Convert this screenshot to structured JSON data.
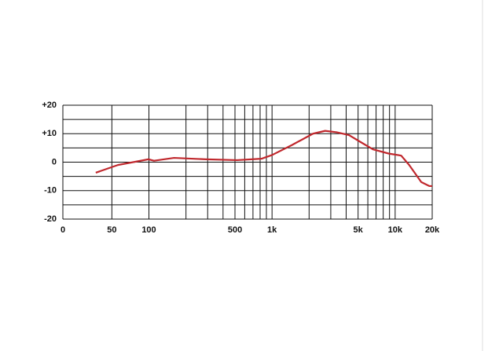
{
  "chart_data": {
    "type": "line",
    "xscale": "log",
    "x": [
      37,
      56,
      99,
      110,
      160,
      290,
      520,
      820,
      1000,
      1450,
      2150,
      2700,
      3350,
      4220,
      5270,
      6600,
      8900,
      11200,
      13000,
      16300,
      19000,
      20000
    ],
    "series": [
      {
        "color": "#c0282d",
        "values": [
          -3.7,
          -1,
          1,
          0.5,
          1.5,
          1,
          0.7,
          1.2,
          2.5,
          6,
          10,
          11,
          10.5,
          9.5,
          7,
          4.5,
          3,
          2.3,
          -1,
          -7,
          -8.4,
          -8.4
        ]
      }
    ],
    "xlim": [
      20,
      20000
    ],
    "xticks": [
      {
        "value": 20,
        "label": "0"
      },
      50,
      100,
      500,
      {
        "value": 1000,
        "label": "1k"
      },
      {
        "value": 5000,
        "label": "5k"
      },
      {
        "value": 10000,
        "label": "10k"
      },
      {
        "value": 20000,
        "label": "20k"
      }
    ],
    "xgrid": [
      20,
      50,
      100,
      200,
      300,
      400,
      500,
      600,
      700,
      800,
      900,
      1000,
      2000,
      3000,
      4000,
      5000,
      6000,
      7000,
      8000,
      9000,
      10000,
      20000
    ],
    "ylim": [
      -20,
      20
    ],
    "yticks": [
      {
        "value": 20,
        "label": "+20"
      },
      {
        "value": 10,
        "label": "+10"
      },
      0,
      -10,
      -20
    ],
    "ygrid": [
      -20,
      -15,
      -10,
      -5,
      0,
      5,
      10,
      15,
      20
    ],
    "grid": true
  }
}
